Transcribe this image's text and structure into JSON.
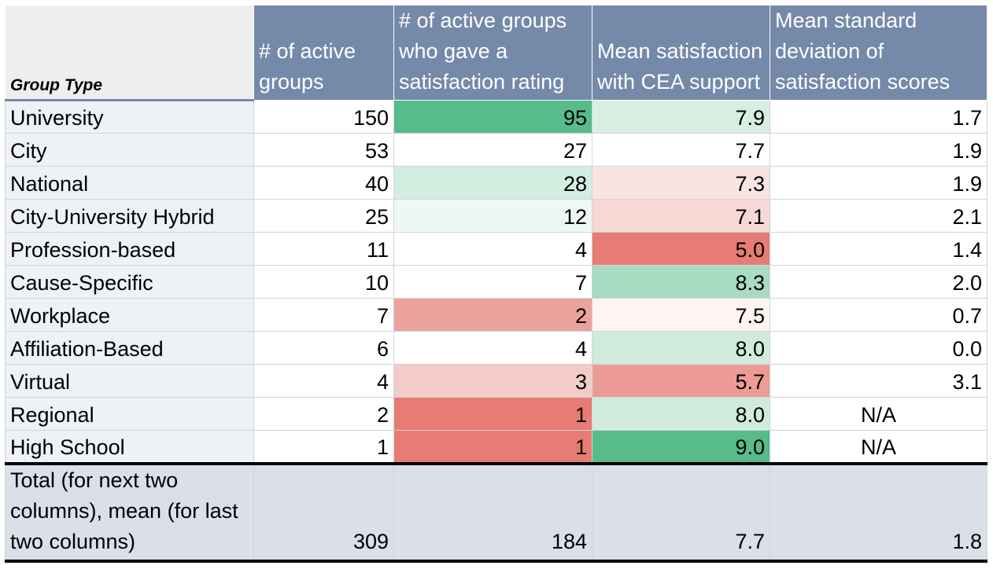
{
  "table": {
    "headers": [
      "Group Type",
      "# of active groups",
      "# of active groups who gave a satisfaction rating",
      "Mean satisfaction with CEA support",
      "Mean standard deviation of satisfaction scores"
    ],
    "rows": [
      {
        "group": "University",
        "active": "150",
        "rated": "95",
        "satisfaction": "7.9",
        "stdev": "1.7",
        "rated_color": "#57bb8a",
        "sat_color": "#d7efe3"
      },
      {
        "group": "City",
        "active": "53",
        "rated": "27",
        "satisfaction": "7.7",
        "stdev": "1.9",
        "rated_color": "#ffffff",
        "sat_color": "#ffffff"
      },
      {
        "group": "National",
        "active": "40",
        "rated": "28",
        "satisfaction": "7.3",
        "stdev": "1.9",
        "rated_color": "#d4ede1",
        "sat_color": "#f9e4e2"
      },
      {
        "group": "City-University Hybrid",
        "active": "25",
        "rated": "12",
        "satisfaction": "7.1",
        "stdev": "2.1",
        "rated_color": "#eef8f3",
        "sat_color": "#f6d8d5"
      },
      {
        "group": "Profession-based",
        "active": "11",
        "rated": "4",
        "satisfaction": "5.0",
        "stdev": "1.4",
        "rated_color": "#ffffff",
        "sat_color": "#e67c73"
      },
      {
        "group": "Cause-Specific",
        "active": "10",
        "rated": "7",
        "satisfaction": "8.3",
        "stdev": "2.0",
        "rated_color": "#ffffff",
        "sat_color": "#a9dbc2"
      },
      {
        "group": "Workplace",
        "active": "7",
        "rated": "2",
        "satisfaction": "7.5",
        "stdev": "0.7",
        "rated_color": "#eba39d",
        "sat_color": "#fdf4f3"
      },
      {
        "group": "Affiliation-Based",
        "active": "6",
        "rated": "4",
        "satisfaction": "8.0",
        "stdev": "0.0",
        "rated_color": "#ffffff",
        "sat_color": "#d0ebde"
      },
      {
        "group": "Virtual",
        "active": "4",
        "rated": "3",
        "satisfaction": "5.7",
        "stdev": "3.1",
        "rated_color": "#f3cbc8",
        "sat_color": "#ec9c95"
      },
      {
        "group": "Regional",
        "active": "2",
        "rated": "1",
        "satisfaction": "8.0",
        "stdev": "N/A",
        "rated_color": "#e67c73",
        "sat_color": "#d0ebde"
      },
      {
        "group": "High School",
        "active": "1",
        "rated": "1",
        "satisfaction": "9.0",
        "stdev": "N/A",
        "rated_color": "#e67c73",
        "sat_color": "#57bb8a"
      }
    ],
    "total": {
      "label": "Total (for next two columns), mean (for last two columns)",
      "active": "309",
      "rated": "184",
      "satisfaction": "7.7",
      "stdev": "1.8"
    }
  },
  "chart_data": {
    "type": "table",
    "columns": [
      "Group Type",
      "# of active groups",
      "# of active groups who gave a satisfaction rating",
      "Mean satisfaction with CEA support",
      "Mean standard deviation of satisfaction scores"
    ],
    "categories": [
      "University",
      "City",
      "National",
      "City-University Hybrid",
      "Profession-based",
      "Cause-Specific",
      "Workplace",
      "Affiliation-Based",
      "Virtual",
      "Regional",
      "High School"
    ],
    "series": [
      {
        "name": "# of active groups",
        "values": [
          150,
          53,
          40,
          25,
          11,
          10,
          7,
          6,
          4,
          2,
          1
        ]
      },
      {
        "name": "# of active groups who gave a satisfaction rating",
        "values": [
          95,
          27,
          28,
          12,
          4,
          7,
          2,
          4,
          3,
          1,
          1
        ]
      },
      {
        "name": "Mean satisfaction with CEA support",
        "values": [
          7.9,
          7.7,
          7.3,
          7.1,
          5.0,
          8.3,
          7.5,
          8.0,
          5.7,
          8.0,
          9.0
        ]
      },
      {
        "name": "Mean standard deviation of satisfaction scores",
        "values": [
          1.7,
          1.9,
          1.9,
          2.1,
          1.4,
          2.0,
          0.7,
          0.0,
          3.1,
          null,
          null
        ]
      }
    ],
    "totals": {
      "active": 309,
      "rated": 184,
      "satisfaction": 7.7,
      "stdev": 1.8
    },
    "colors": {
      "header_bg": "#7589a9",
      "label_bg": "#eef1f6",
      "total_bg": "#dadfe8",
      "high_green": "#57bb8a",
      "low_red": "#e67c73"
    }
  }
}
